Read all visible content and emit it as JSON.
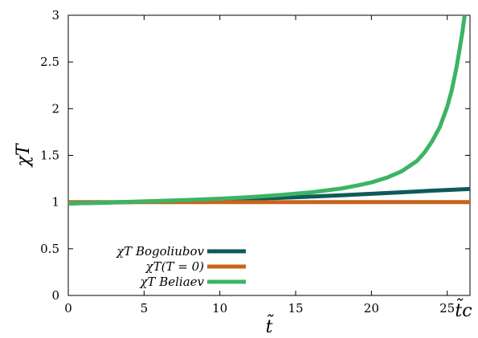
{
  "chart_data": {
    "type": "line",
    "xlabel": "t̃",
    "ylabel": "χT",
    "xlim": [
      0,
      26.5
    ],
    "ylim": [
      0,
      3
    ],
    "x_ticks": [
      0,
      5,
      10,
      15,
      20,
      25
    ],
    "x_tick_labels": [
      "0",
      "5",
      "10",
      "15",
      "20",
      "25"
    ],
    "x_extra_tick": {
      "value": 26.5,
      "label": "t̃c"
    },
    "y_ticks": [
      0,
      0.5,
      1,
      1.5,
      2,
      2.5,
      3
    ],
    "y_tick_labels": [
      "0",
      "0.5",
      "1",
      "1.5",
      "2",
      "2.5",
      "3"
    ],
    "grid": false,
    "legend_position": "bottom-left",
    "series": [
      {
        "name": "χT Bogoliubov",
        "legend_text": "χT Bogoliubov",
        "color": "#0f5a5a",
        "x": [
          0,
          2,
          4,
          6,
          8,
          10,
          12,
          14,
          16,
          18,
          20,
          22,
          24,
          26.5
        ],
        "y": [
          0.985,
          0.992,
          1.0,
          1.008,
          1.016,
          1.024,
          1.035,
          1.045,
          1.058,
          1.072,
          1.088,
          1.105,
          1.122,
          1.14
        ]
      },
      {
        "name": "χT(T = 0)",
        "legend_text": "χT(T = 0)",
        "color": "#c8641e",
        "x": [
          0,
          26.5
        ],
        "y": [
          1.0,
          1.0
        ]
      },
      {
        "name": "χT Beliaev",
        "legend_text": "χT Beliaev",
        "color": "#3cb464",
        "x": [
          0,
          2,
          4,
          6,
          8,
          10,
          12,
          14,
          16,
          18,
          19,
          20,
          21,
          22,
          23,
          23.5,
          24,
          24.5,
          25,
          25.3,
          25.6,
          25.8,
          26.0,
          26.15
        ],
        "y": [
          0.985,
          0.993,
          1.002,
          1.012,
          1.023,
          1.036,
          1.053,
          1.075,
          1.104,
          1.145,
          1.175,
          1.21,
          1.26,
          1.33,
          1.44,
          1.53,
          1.65,
          1.8,
          2.02,
          2.2,
          2.43,
          2.62,
          2.82,
          3.0
        ]
      }
    ]
  }
}
